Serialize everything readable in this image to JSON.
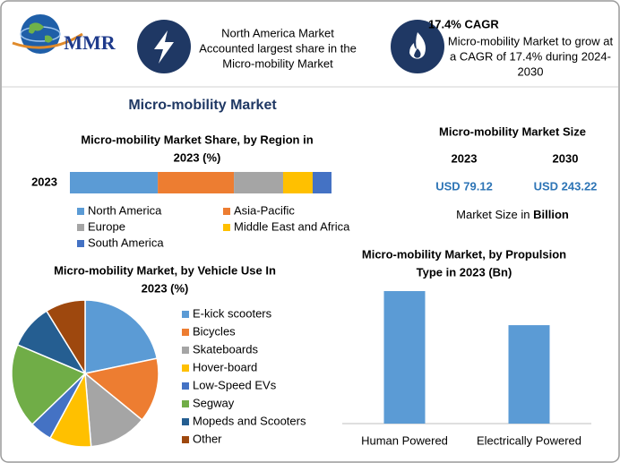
{
  "header": {
    "logo": "MMR",
    "highlight": [
      "North America Market",
      "Accounted largest share in the",
      "Micro-mobility Market"
    ],
    "cagr_title": "17.4% CAGR",
    "cagr_text": [
      "Micro-mobility Market to grow at",
      "a CAGR of 17.4% during 2024-",
      "2030"
    ]
  },
  "main_title": "Micro-mobility Market",
  "market_size": {
    "title": "Micro-mobility Market Size",
    "years": [
      "2023",
      "2030"
    ],
    "values": [
      "USD 79.12",
      "USD 243.22"
    ],
    "note": "Market Size in",
    "note_unit": "Billion"
  },
  "chart_data": [
    {
      "type": "bar",
      "horizontal": true,
      "stacked": true,
      "title": [
        "Micro-mobility Market Share, by Region in",
        "2023 (%)"
      ],
      "categories": [
        "2023"
      ],
      "xlim": [
        0,
        100
      ],
      "series": [
        {
          "name": "North America",
          "color": "#5b9bd5",
          "values": [
            33.6
          ]
        },
        {
          "name": "Asia-Pacific",
          "color": "#ed7d31",
          "values": [
            29.1
          ]
        },
        {
          "name": "Europe",
          "color": "#a5a5a5",
          "values": [
            18.8
          ]
        },
        {
          "name": "Middle East and Africa",
          "color": "#ffc000",
          "values": [
            11.3
          ]
        },
        {
          "name": "South America",
          "color": "#4472c4",
          "values": [
            7.2
          ]
        }
      ]
    },
    {
      "type": "pie",
      "title": [
        "Micro-mobility Market, by Vehicle Use In",
        "2023 (%)"
      ],
      "categories": [
        "E-kick scooters",
        "Bicycles",
        "Skateboards",
        "Hover-board",
        "Low-Speed EVs",
        "Segway",
        "Mopeds and Scooters",
        "Other"
      ],
      "values": [
        21.7,
        14.2,
        12.8,
        9.2,
        4.9,
        18.6,
        9.8,
        8.8
      ],
      "colors": [
        "#5b9bd5",
        "#ed7d31",
        "#a5a5a5",
        "#ffc000",
        "#4472c4",
        "#70ad47",
        "#255e91",
        "#9e480e"
      ]
    },
    {
      "type": "bar",
      "title": [
        "Micro-mobility Market, by Propulsion",
        "Type in 2023 (Bn)"
      ],
      "categories": [
        "Human Powered",
        "Electrically Powered"
      ],
      "values": [
        45.4,
        33.72
      ],
      "color": "#5b9bd5",
      "ylim": [
        0,
        54
      ]
    }
  ]
}
